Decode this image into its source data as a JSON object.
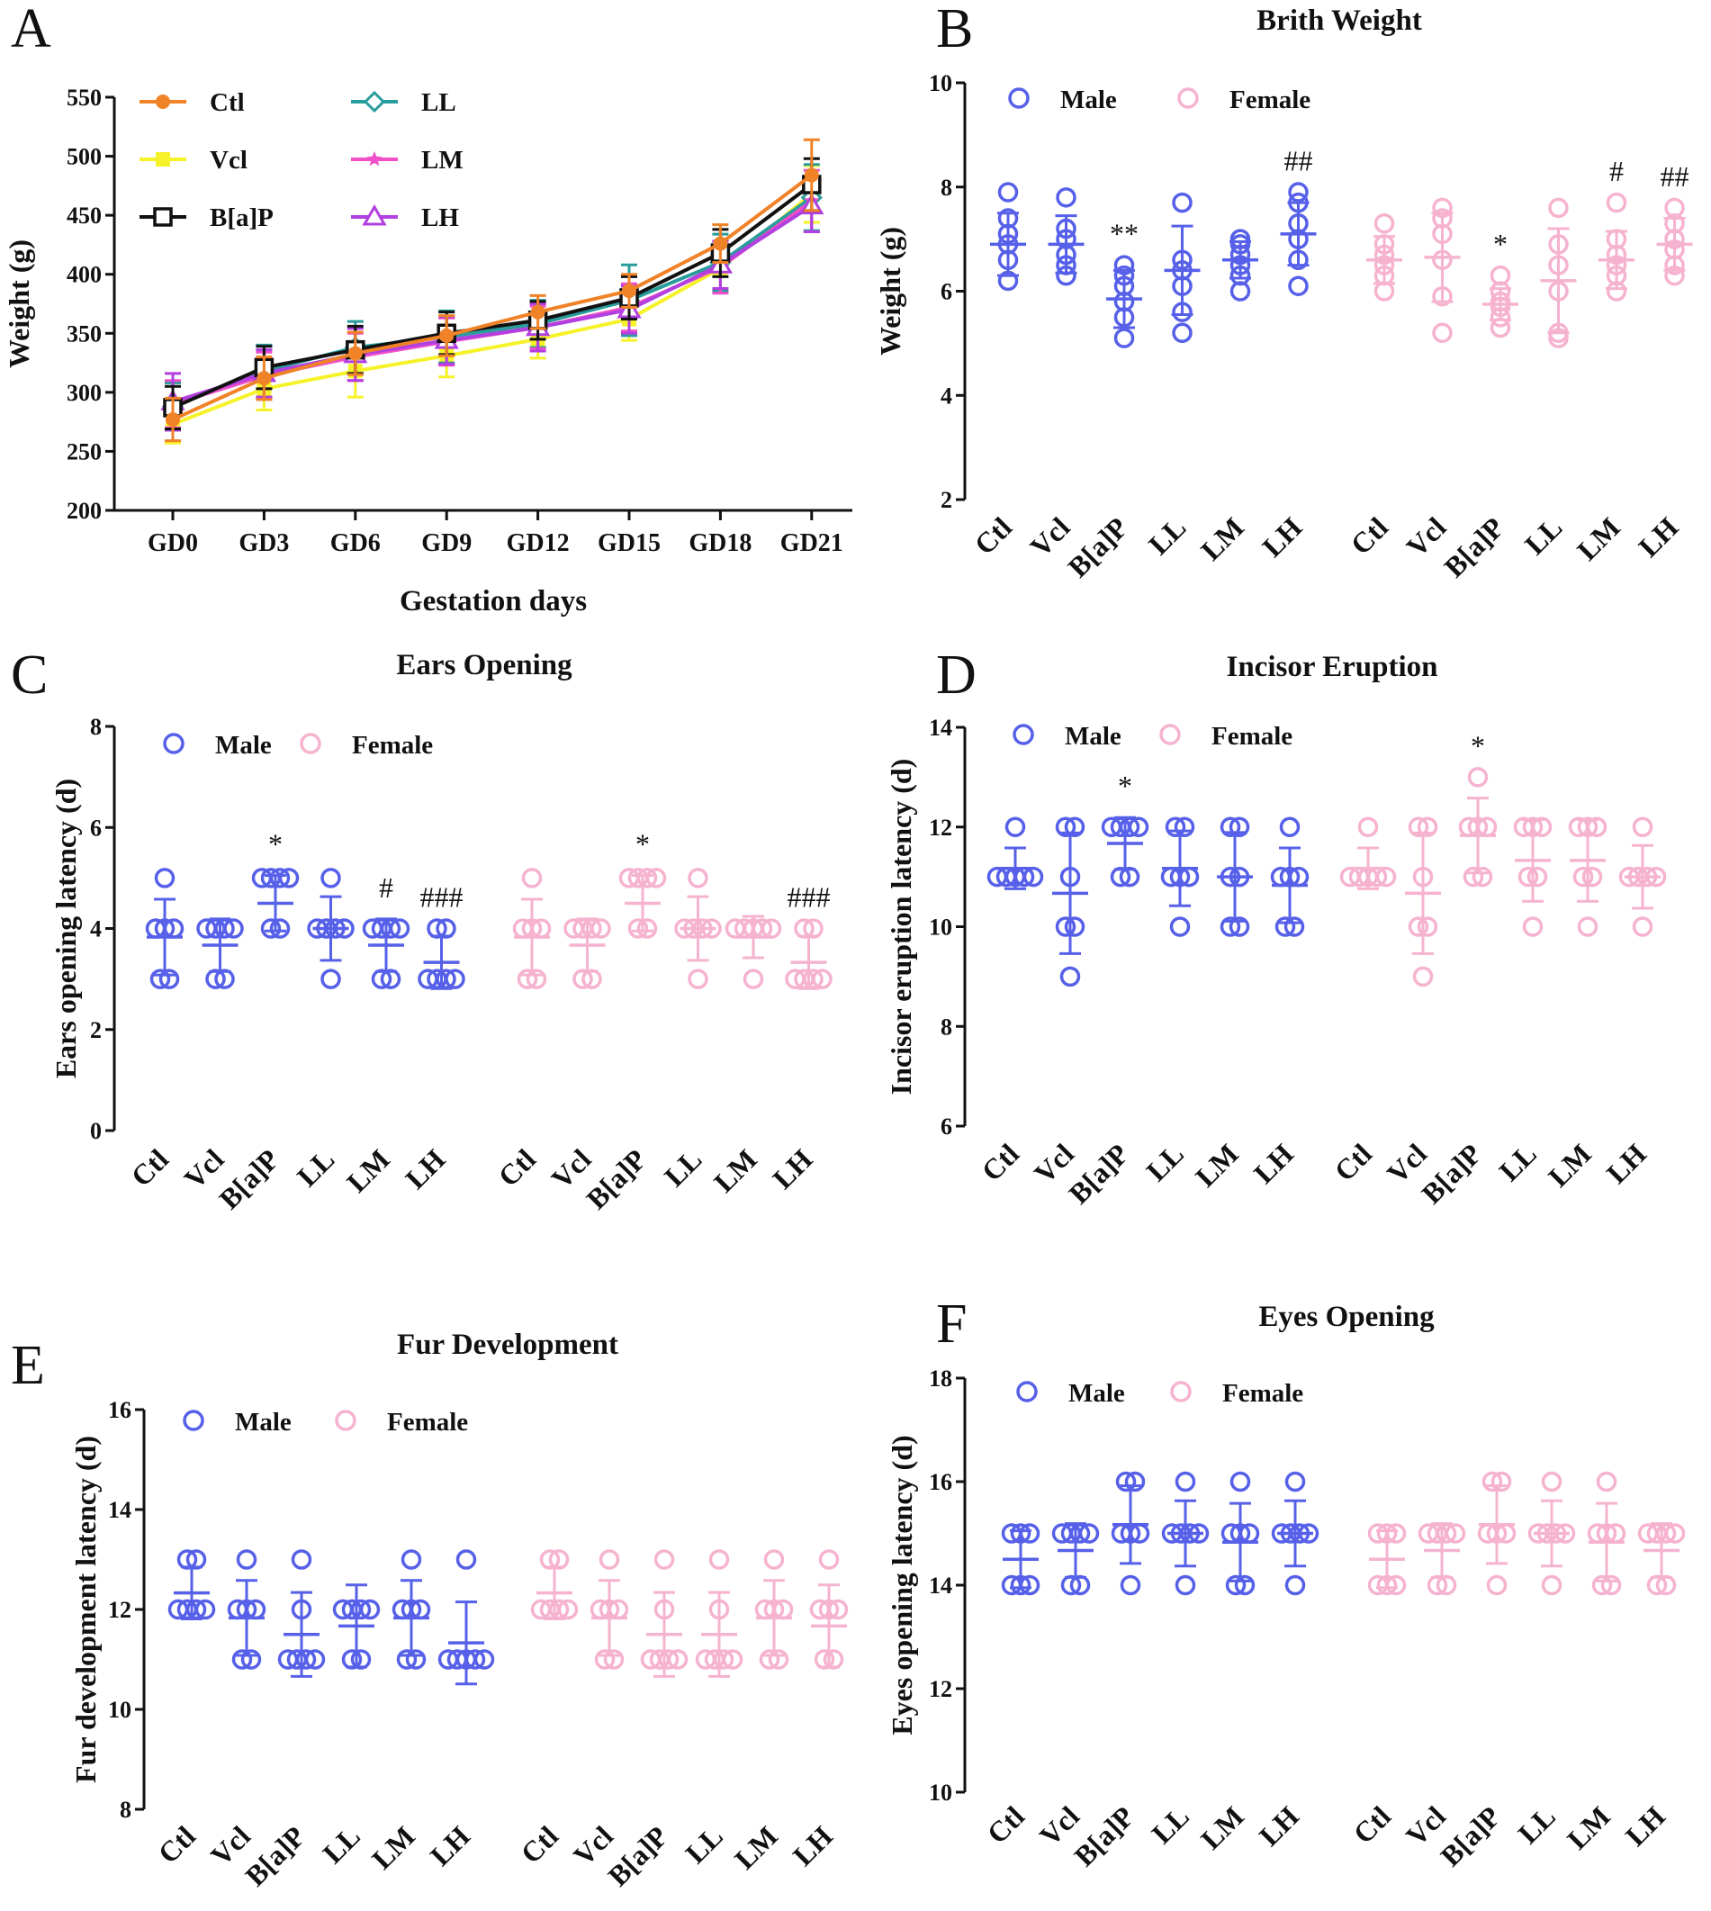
{
  "colors": {
    "male": "#5660e8",
    "female": "#f6b3cf",
    "Ctl": "#f08228",
    "Vcl": "#f6f22a",
    "B[a]P": "#111111",
    "LL": "#2a9c9c",
    "LM": "#f04fc8",
    "LH": "#b23fe0"
  },
  "chart_data": [
    {
      "panel": "A",
      "type": "line",
      "title": "",
      "xlabel": "Gestation days",
      "ylabel": "Weight (g)",
      "categories": [
        "GD0",
        "GD3",
        "GD6",
        "GD9",
        "GD12",
        "GD15",
        "GD18",
        "GD21"
      ],
      "ylim": [
        200,
        550
      ],
      "yticks": [
        200,
        250,
        300,
        350,
        400,
        450,
        500,
        550
      ],
      "ytick_labels": [
        "200",
        "250",
        "300",
        "350",
        "400",
        "450",
        "500",
        "550"
      ],
      "series": [
        {
          "name": "Ctl",
          "marker": "circle",
          "values": [
            277,
            312,
            333,
            348,
            368,
            386,
            426,
            484
          ],
          "err": [
            18,
            18,
            18,
            17,
            14,
            14,
            16,
            30
          ]
        },
        {
          "name": "Vcl",
          "marker": "square",
          "values": [
            273,
            303,
            318,
            331,
            345,
            362,
            405,
            468
          ],
          "err": [
            16,
            18,
            22,
            18,
            16,
            18,
            20,
            24
          ]
        },
        {
          "name": "B[a]P",
          "marker": "open-square",
          "values": [
            287,
            321,
            336,
            350,
            361,
            380,
            418,
            476
          ],
          "err": [
            18,
            18,
            20,
            18,
            16,
            18,
            20,
            22
          ]
        },
        {
          "name": "LL",
          "marker": "open-diamond",
          "values": [
            288,
            318,
            338,
            347,
            358,
            378,
            410,
            465
          ],
          "err": [
            20,
            22,
            22,
            22,
            20,
            30,
            24,
            28
          ]
        },
        {
          "name": "LM",
          "marker": "star",
          "values": [
            290,
            314,
            330,
            343,
            355,
            372,
            406,
            462
          ],
          "err": [
            20,
            20,
            20,
            20,
            18,
            20,
            22,
            26
          ]
        },
        {
          "name": "LH",
          "marker": "open-triangle",
          "values": [
            292,
            316,
            332,
            344,
            355,
            370,
            408,
            458
          ],
          "err": [
            24,
            20,
            22,
            20,
            20,
            20,
            20,
            22
          ]
        }
      ]
    },
    {
      "panel": "B",
      "type": "scatter",
      "title": "Brith Weight",
      "ylabel": "Weight (g)",
      "ylim": [
        2,
        10
      ],
      "yticks": [
        2,
        4,
        6,
        8,
        10
      ],
      "ytick_labels": [
        "2",
        "4",
        "6",
        "8",
        "10"
      ],
      "categories": [
        "Ctl",
        "Vcl",
        "B[a]P",
        "LL",
        "LM",
        "LH"
      ],
      "series": [
        {
          "name": "Male",
          "points": [
            [
              6.2,
              6.6,
              6.9,
              7.1,
              7.4,
              7.9
            ],
            [
              6.3,
              6.5,
              6.7,
              7.0,
              7.2,
              7.8
            ],
            [
              5.1,
              5.5,
              5.8,
              6.1,
              6.3,
              6.5
            ],
            [
              5.2,
              5.6,
              6.1,
              6.4,
              6.6,
              7.7
            ],
            [
              6.0,
              6.3,
              6.5,
              6.7,
              6.9,
              7.0
            ],
            [
              6.1,
              6.6,
              7.0,
              7.3,
              7.7,
              7.9
            ]
          ],
          "mean": [
            6.9,
            6.9,
            5.85,
            6.4,
            6.6,
            7.1
          ],
          "sd": [
            0.6,
            0.55,
            0.55,
            0.85,
            0.35,
            0.6
          ],
          "sig": [
            "",
            "",
            "**",
            "",
            "",
            "##"
          ]
        },
        {
          "name": "Female",
          "points": [
            [
              6.0,
              6.3,
              6.5,
              6.7,
              6.9,
              7.3
            ],
            [
              5.2,
              5.9,
              6.6,
              7.1,
              7.4,
              7.6
            ],
            [
              5.3,
              5.5,
              5.7,
              5.8,
              6.0,
              6.3
            ],
            [
              5.1,
              5.2,
              6.0,
              6.5,
              6.9,
              7.6
            ],
            [
              6.0,
              6.3,
              6.5,
              6.7,
              7.0,
              7.7
            ],
            [
              6.3,
              6.5,
              6.8,
              7.0,
              7.3,
              7.6
            ]
          ],
          "mean": [
            6.6,
            6.65,
            5.75,
            6.2,
            6.6,
            6.9
          ],
          "sd": [
            0.45,
            0.85,
            0.3,
            1.0,
            0.55,
            0.5
          ],
          "sig": [
            "",
            "",
            "*",
            "",
            "#",
            "##"
          ]
        }
      ]
    },
    {
      "panel": "C",
      "type": "scatter",
      "title": "Ears Opening",
      "ylabel": "Ears opening latency (d)",
      "ylim": [
        0,
        8
      ],
      "yticks": [
        0,
        2,
        4,
        6,
        8
      ],
      "ytick_labels": [
        "0",
        "2",
        "4",
        "6",
        "8"
      ],
      "categories": [
        "Ctl",
        "Vcl",
        "B[a]P",
        "LL",
        "LM",
        "LH"
      ],
      "series": [
        {
          "name": "Male",
          "points": [
            [
              3,
              3,
              4,
              4,
              4,
              5
            ],
            [
              3,
              3,
              4,
              4,
              4,
              4
            ],
            [
              4,
              4,
              5,
              5,
              5,
              5
            ],
            [
              3,
              4,
              4,
              4,
              4,
              5
            ],
            [
              3,
              3,
              4,
              4,
              4,
              4
            ],
            [
              3,
              3,
              3,
              3,
              4,
              4
            ]
          ],
          "mean": [
            3.83,
            3.67,
            4.5,
            4.0,
            3.67,
            3.33
          ],
          "sd": [
            0.75,
            0.52,
            0.55,
            0.63,
            0.52,
            0.52
          ],
          "sig": [
            "",
            "",
            "*",
            "",
            "#",
            "###"
          ]
        },
        {
          "name": "Female",
          "points": [
            [
              3,
              3,
              4,
              4,
              4,
              5
            ],
            [
              3,
              3,
              4,
              4,
              4,
              4
            ],
            [
              4,
              4,
              5,
              5,
              5,
              5
            ],
            [
              3,
              4,
              4,
              4,
              4,
              5
            ],
            [
              3,
              4,
              4,
              4,
              4,
              4
            ],
            [
              3,
              3,
              3,
              3,
              4,
              4
            ]
          ],
          "mean": [
            3.83,
            3.67,
            4.5,
            4.0,
            3.83,
            3.33
          ],
          "sd": [
            0.75,
            0.52,
            0.55,
            0.63,
            0.41,
            0.52
          ],
          "sig": [
            "",
            "",
            "*",
            "",
            "",
            "###"
          ]
        }
      ]
    },
    {
      "panel": "D",
      "type": "scatter",
      "title": "Incisor Eruption",
      "ylabel": "Incisor eruption latency (d)",
      "ylim": [
        6,
        14
      ],
      "yticks": [
        6,
        8,
        10,
        12,
        14
      ],
      "ytick_labels": [
        "6",
        "8",
        "10",
        "12",
        "14"
      ],
      "categories": [
        "Ctl",
        "Vcl",
        "B[a]P",
        "LL",
        "LM",
        "LH"
      ],
      "series": [
        {
          "name": "Male",
          "points": [
            [
              11,
              11,
              11,
              11,
              11,
              12
            ],
            [
              9,
              10,
              10,
              11,
              12,
              12
            ],
            [
              11,
              11,
              12,
              12,
              12,
              12
            ],
            [
              10,
              11,
              11,
              11,
              12,
              12
            ],
            [
              10,
              10,
              11,
              11,
              12,
              12
            ],
            [
              10,
              10,
              11,
              11,
              11,
              12
            ]
          ],
          "mean": [
            11.17,
            10.67,
            11.67,
            11.17,
            11.0,
            10.83
          ],
          "sd": [
            0.41,
            1.21,
            0.52,
            0.75,
            0.89,
            0.75
          ],
          "sig": [
            "",
            "",
            "*",
            "",
            "",
            ""
          ]
        },
        {
          "name": "Female",
          "points": [
            [
              11,
              11,
              11,
              11,
              11,
              12
            ],
            [
              9,
              10,
              10,
              11,
              12,
              12
            ],
            [
              11,
              11,
              12,
              12,
              12,
              13
            ],
            [
              10,
              11,
              11,
              12,
              12,
              12
            ],
            [
              10,
              11,
              11,
              12,
              12,
              12
            ],
            [
              10,
              11,
              11,
              11,
              11,
              12
            ]
          ],
          "mean": [
            11.17,
            10.67,
            11.83,
            11.33,
            11.33,
            11.0
          ],
          "sd": [
            0.41,
            1.21,
            0.75,
            0.82,
            0.82,
            0.63
          ],
          "sig": [
            "",
            "",
            "*",
            "",
            "",
            ""
          ]
        }
      ]
    },
    {
      "panel": "E",
      "type": "scatter",
      "title": "Fur Development",
      "ylabel": "Fur development latency (d)",
      "ylim": [
        8,
        16
      ],
      "yticks": [
        8,
        10,
        12,
        14,
        16
      ],
      "ytick_labels": [
        "8",
        "10",
        "12",
        "14",
        "16"
      ],
      "categories": [
        "Ctl",
        "Vcl",
        "B[a]P",
        "LL",
        "LM",
        "LH"
      ],
      "series": [
        {
          "name": "Male",
          "points": [
            [
              12,
              12,
              12,
              12,
              13,
              13
            ],
            [
              11,
              11,
              12,
              12,
              12,
              13
            ],
            [
              11,
              11,
              11,
              11,
              12,
              13
            ],
            [
              11,
              11,
              12,
              12,
              12,
              12
            ],
            [
              11,
              11,
              12,
              12,
              12,
              13
            ],
            [
              11,
              11,
              11,
              11,
              11,
              13
            ]
          ],
          "mean": [
            12.33,
            11.83,
            11.5,
            11.67,
            11.83,
            11.33
          ],
          "sd": [
            0.52,
            0.75,
            0.84,
            0.82,
            0.75,
            0.82
          ],
          "sig": [
            "",
            "",
            "",
            "",
            "",
            ""
          ]
        },
        {
          "name": "Female",
          "points": [
            [
              12,
              12,
              12,
              12,
              13,
              13
            ],
            [
              11,
              11,
              12,
              12,
              12,
              13
            ],
            [
              11,
              11,
              11,
              11,
              12,
              13
            ],
            [
              11,
              11,
              11,
              11,
              12,
              13
            ],
            [
              11,
              11,
              12,
              12,
              12,
              13
            ],
            [
              11,
              11,
              12,
              12,
              12,
              13
            ]
          ],
          "mean": [
            12.33,
            11.83,
            11.5,
            11.5,
            11.83,
            11.67
          ],
          "sd": [
            0.52,
            0.75,
            0.84,
            0.84,
            0.75,
            0.82
          ],
          "sig": [
            "",
            "",
            "",
            "",
            "",
            ""
          ]
        }
      ]
    },
    {
      "panel": "F",
      "type": "scatter",
      "title": "Eyes Opening",
      "ylabel": "Eyes opening latency (d)",
      "ylim": [
        10,
        18
      ],
      "yticks": [
        10,
        12,
        14,
        16,
        18
      ],
      "ytick_labels": [
        "10",
        "12",
        "14",
        "16",
        "18"
      ],
      "categories": [
        "Ctl",
        "Vcl",
        "B[a]P",
        "LL",
        "LM",
        "LH"
      ],
      "series": [
        {
          "name": "Male",
          "points": [
            [
              14,
              14,
              14,
              15,
              15,
              15
            ],
            [
              14,
              14,
              15,
              15,
              15,
              15
            ],
            [
              14,
              15,
              15,
              15,
              16,
              16
            ],
            [
              14,
              15,
              15,
              15,
              15,
              16
            ],
            [
              14,
              14,
              15,
              15,
              15,
              16
            ],
            [
              14,
              15,
              15,
              15,
              15,
              16
            ]
          ],
          "mean": [
            14.5,
            14.67,
            15.17,
            15.0,
            14.83,
            15.0
          ],
          "sd": [
            0.55,
            0.52,
            0.75,
            0.63,
            0.75,
            0.63
          ],
          "sig": [
            "",
            "",
            "",
            "",
            "",
            ""
          ]
        },
        {
          "name": "Female",
          "points": [
            [
              14,
              14,
              14,
              15,
              15,
              15
            ],
            [
              14,
              14,
              15,
              15,
              15,
              15
            ],
            [
              14,
              15,
              15,
              15,
              16,
              16
            ],
            [
              14,
              15,
              15,
              15,
              15,
              16
            ],
            [
              14,
              14,
              15,
              15,
              15,
              16
            ],
            [
              14,
              14,
              15,
              15,
              15,
              15
            ]
          ],
          "mean": [
            14.5,
            14.67,
            15.17,
            15.0,
            14.83,
            14.67
          ],
          "sd": [
            0.55,
            0.52,
            0.75,
            0.63,
            0.75,
            0.52
          ],
          "sig": [
            "",
            "",
            "",
            "",
            "",
            ""
          ]
        }
      ]
    }
  ]
}
